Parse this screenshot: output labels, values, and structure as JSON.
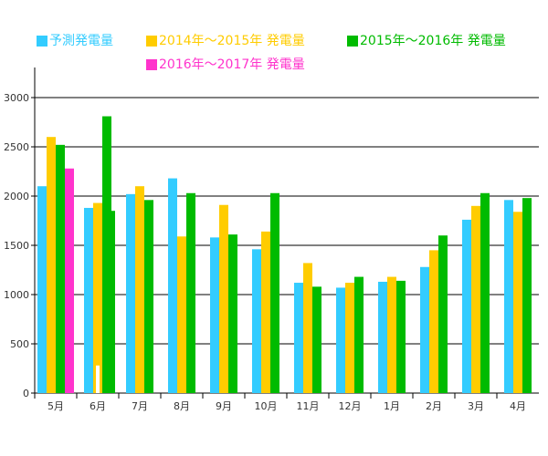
{
  "chart_data": {
    "type": "bar",
    "title": "",
    "xlabel": "",
    "ylabel": "",
    "ylim": [
      0,
      3250
    ],
    "yticks": [
      0,
      500,
      1000,
      1500,
      2000,
      2500,
      3000
    ],
    "grid": true,
    "legend_position": "top",
    "categories": [
      "5月",
      "6月",
      "7月",
      "8月",
      "9月",
      "10月",
      "11月",
      "12月",
      "1月",
      "2月",
      "3月",
      "4月"
    ],
    "series": [
      {
        "name": "予測発電量",
        "color": "#33ccff",
        "values": [
          2100,
          1880,
          2020,
          2180,
          1580,
          1460,
          1120,
          1070,
          1130,
          1280,
          1760,
          1960
        ]
      },
      {
        "name": "2014年～2015年 発電量",
        "color": "#ffcc00",
        "values": [
          2600,
          1930,
          2100,
          1590,
          1910,
          1640,
          1320,
          1120,
          1180,
          1450,
          1900,
          1840
        ]
      },
      {
        "name": "2015年～2016年 発電量",
        "color": "#00bb00",
        "values": [
          2520,
          2810,
          1960,
          2030,
          1610,
          2030,
          1080,
          1180,
          1140,
          1600,
          2030,
          1980
        ]
      },
      {
        "name": "2016年～2017年 発電量",
        "color": "#ff33cc",
        "values": [
          2280,
          null,
          null,
          null,
          null,
          null,
          null,
          null,
          null,
          null,
          null,
          null
        ]
      }
    ],
    "annotations": [
      {
        "series": "2015年～2016年 発電量",
        "category": "6月",
        "note": "overlay bar",
        "value": 1850
      },
      {
        "series": "2014年～2015年 発電量",
        "category": "6月",
        "note": "lower white gap",
        "value": 280
      }
    ]
  }
}
